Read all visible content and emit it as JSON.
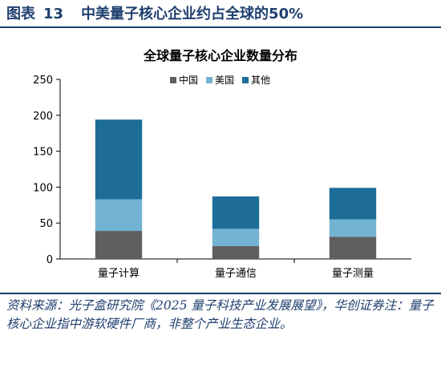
{
  "figure": {
    "label": "图表",
    "number": "13",
    "title": "中美量子核心企业约占全球的50%"
  },
  "source_note": "资料来源：光子盒研究院《2025 量子科技产业发展展望》，华创证券注：量子核心企业指中游软硬件厂商，非整个产业生态企业。",
  "chart_data": {
    "type": "bar",
    "stacked": true,
    "title": "全球量子核心企业数量分布",
    "categories": [
      "量子计算",
      "量子通信",
      "量子测量"
    ],
    "series": [
      {
        "name": "中国",
        "values": [
          39,
          18,
          31
        ],
        "color": "#5f5f5f"
      },
      {
        "name": "美国",
        "values": [
          44,
          24,
          24
        ],
        "color": "#72b2d2"
      },
      {
        "name": "其他",
        "values": [
          111,
          45,
          44
        ],
        "color": "#1d6d98"
      }
    ],
    "ylim": [
      0,
      250
    ],
    "yticks": [
      0,
      50,
      100,
      150,
      200,
      250
    ],
    "xlabel": "",
    "ylabel": "",
    "grid": false,
    "legend_position": "top-center"
  }
}
